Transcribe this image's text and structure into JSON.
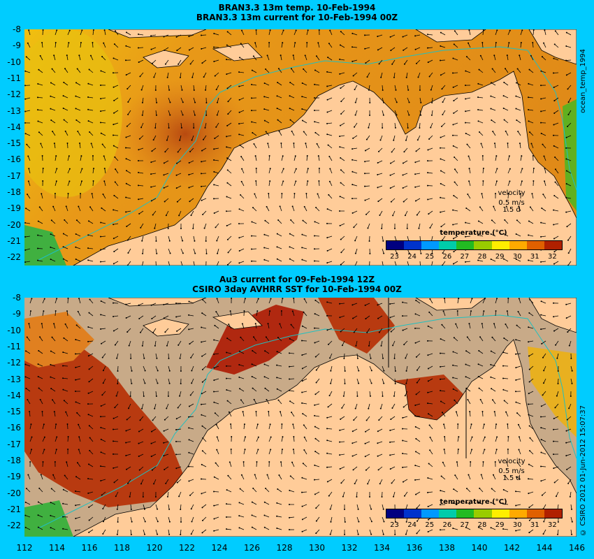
{
  "panels": [
    {
      "title_line1": "BRAN3.3 13m temp. 10-Feb-1994",
      "title_line2": "BRAN3.3 13m current for 10-Feb-1994 00Z",
      "side_label": "ocean_temp_1994",
      "velocity_label": "velocity",
      "velocity_scale": "0.5 m/s",
      "velocity_period": "1.5 d"
    },
    {
      "title_line1": "Au3 current for 09-Feb-1994 12Z",
      "title_line2": "CSIRO 3day AVHRR SST for 10-Feb-1994 00Z",
      "side_label": "© CSIRO 2012  01-Jun-2012 15:07:37",
      "velocity_label": "velocity",
      "velocity_scale": "0.5 m/s",
      "velocity_period": "1.5 d"
    }
  ],
  "legend": {
    "title": "temperature (°C)",
    "ticks": [
      "23",
      "24",
      "25",
      "26",
      "27",
      "28",
      "29",
      "30",
      "31",
      "32"
    ],
    "colors": [
      "#000080",
      "#0033cc",
      "#0099ff",
      "#00ccaa",
      "#22bb22",
      "#99cc00",
      "#ffee00",
      "#ffaa00",
      "#e06000",
      "#b02000"
    ]
  },
  "y_ticks": [
    "-8",
    "-9",
    "-10",
    "-11",
    "-12",
    "-13",
    "-14",
    "-15",
    "-16",
    "-17",
    "-18",
    "-19",
    "-20",
    "-21",
    "-22"
  ],
  "x_ticks": [
    "112",
    "114",
    "116",
    "118",
    "120",
    "122",
    "124",
    "126",
    "128",
    "130",
    "132",
    "134",
    "136",
    "138",
    "140",
    "142",
    "144",
    "146"
  ],
  "colors": {
    "background": "#00ccff",
    "land": "#ffcc99",
    "no_data": "#c8aa88",
    "coast": "#000000",
    "isobath": "#20c0c0"
  }
}
